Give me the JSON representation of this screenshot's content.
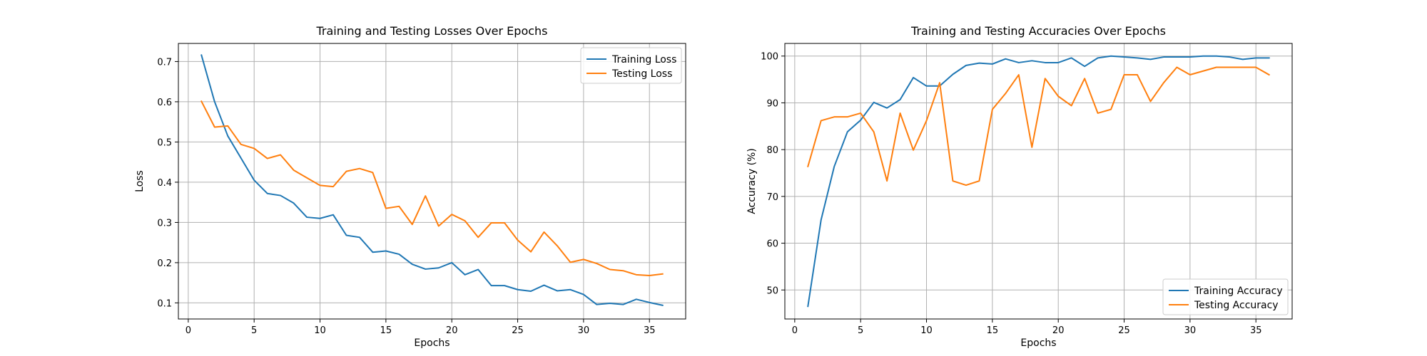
{
  "chart_data": [
    {
      "type": "line",
      "title": "Training and Testing Losses Over Epochs",
      "xlabel": "Epochs",
      "ylabel": "Loss",
      "xlim": [
        -0.75,
        37.75
      ],
      "ylim": [
        0.06,
        0.745
      ],
      "xticks": [
        0,
        5,
        10,
        15,
        20,
        25,
        30,
        35
      ],
      "yticks": [
        0.1,
        0.2,
        0.3,
        0.4,
        0.5,
        0.6,
        0.7
      ],
      "ytick_labels": [
        "0.1",
        "0.2",
        "0.3",
        "0.4",
        "0.5",
        "0.6",
        "0.7"
      ],
      "grid": true,
      "legend_position": "top-right",
      "x": [
        1,
        2,
        3,
        4,
        5,
        6,
        7,
        8,
        9,
        10,
        11,
        12,
        13,
        14,
        15,
        16,
        17,
        18,
        19,
        20,
        21,
        22,
        23,
        24,
        25,
        26,
        27,
        28,
        29,
        30,
        31,
        32,
        33,
        34,
        35,
        36
      ],
      "series": [
        {
          "name": "Training Loss",
          "color": "#1f77b4",
          "values": [
            0.716,
            0.6,
            0.515,
            0.46,
            0.405,
            0.372,
            0.367,
            0.348,
            0.313,
            0.31,
            0.319,
            0.268,
            0.263,
            0.226,
            0.229,
            0.221,
            0.196,
            0.184,
            0.187,
            0.2,
            0.17,
            0.183,
            0.143,
            0.143,
            0.133,
            0.129,
            0.144,
            0.13,
            0.133,
            0.121,
            0.096,
            0.099,
            0.096,
            0.109,
            0.101,
            0.094
          ]
        },
        {
          "name": "Testing Loss",
          "color": "#ff7f0e",
          "values": [
            0.601,
            0.537,
            0.54,
            0.494,
            0.484,
            0.459,
            0.468,
            0.43,
            0.411,
            0.392,
            0.389,
            0.427,
            0.434,
            0.424,
            0.335,
            0.34,
            0.295,
            0.366,
            0.291,
            0.32,
            0.304,
            0.263,
            0.299,
            0.299,
            0.256,
            0.227,
            0.276,
            0.242,
            0.201,
            0.208,
            0.198,
            0.183,
            0.18,
            0.17,
            0.168,
            0.172
          ]
        }
      ]
    },
    {
      "type": "line",
      "title": "Training and Testing Accuracies Over Epochs",
      "xlabel": "Epochs",
      "ylabel": "Accuracy (%)",
      "xlim": [
        -0.75,
        37.75
      ],
      "ylim": [
        43.8,
        102.7
      ],
      "xticks": [
        0,
        5,
        10,
        15,
        20,
        25,
        30,
        35
      ],
      "yticks": [
        50,
        60,
        70,
        80,
        90,
        100
      ],
      "ytick_labels": [
        "50",
        "60",
        "70",
        "80",
        "90",
        "100"
      ],
      "grid": true,
      "legend_position": "bottom-right",
      "x": [
        1,
        2,
        3,
        4,
        5,
        6,
        7,
        8,
        9,
        10,
        11,
        12,
        13,
        14,
        15,
        16,
        17,
        18,
        19,
        20,
        21,
        22,
        23,
        24,
        25,
        26,
        27,
        28,
        29,
        30,
        31,
        32,
        33,
        34,
        35,
        36
      ],
      "series": [
        {
          "name": "Training Accuracy",
          "color": "#1f77b4",
          "values": [
            46.5,
            65.0,
            76.4,
            83.8,
            86.3,
            90.1,
            88.9,
            90.7,
            95.4,
            93.6,
            93.6,
            96.1,
            98.0,
            98.5,
            98.3,
            99.4,
            98.6,
            99.0,
            98.6,
            98.6,
            99.6,
            97.8,
            99.6,
            100.0,
            99.8,
            99.6,
            99.3,
            99.8,
            99.8,
            99.8,
            100.0,
            100.0,
            99.8,
            99.3,
            99.6,
            99.6
          ]
        },
        {
          "name": "Testing Accuracy",
          "color": "#ff7f0e",
          "values": [
            76.4,
            86.2,
            87.0,
            87.0,
            87.8,
            83.8,
            73.3,
            87.8,
            79.9,
            86.2,
            94.3,
            73.3,
            72.4,
            73.3,
            88.6,
            92.0,
            96.0,
            80.5,
            95.2,
            91.4,
            89.4,
            95.2,
            87.8,
            88.6,
            96.0,
            96.0,
            90.3,
            94.3,
            97.6,
            96.0,
            96.8,
            97.6,
            97.6,
            97.6,
            97.6,
            96.0
          ]
        }
      ]
    }
  ]
}
